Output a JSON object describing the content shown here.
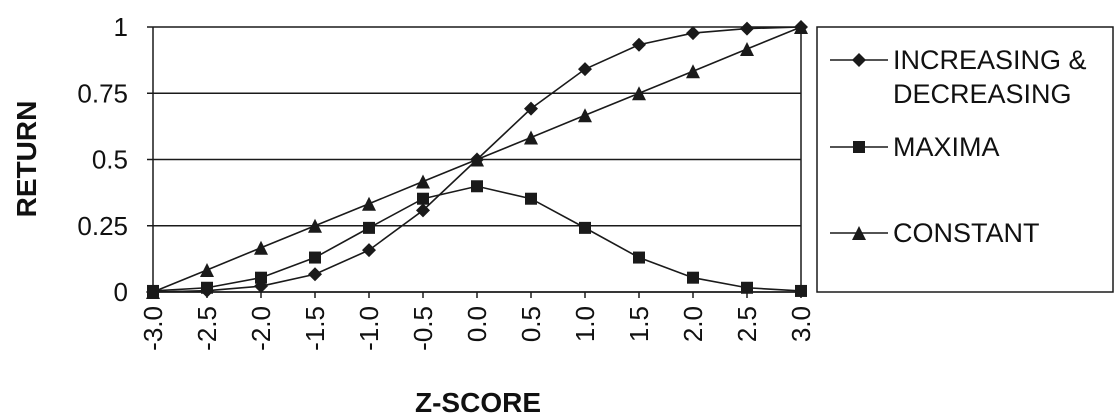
{
  "chart_data": {
    "type": "line",
    "title": "",
    "xlabel": "Z-SCORE",
    "ylabel": "RETURN",
    "x": [
      "-3.0",
      "-2.5",
      "-2.0",
      "-1.5",
      "-1.0",
      "-0.5",
      "0.0",
      "0.5",
      "1.0",
      "1.5",
      "2.0",
      "2.5",
      "3.0"
    ],
    "x_values": [
      -3.0,
      -2.5,
      -2.0,
      -1.5,
      -1.0,
      -0.5,
      0.0,
      0.5,
      1.0,
      1.5,
      2.0,
      2.5,
      3.0
    ],
    "yticks": [
      "0",
      "0.25",
      "0.5",
      "0.75",
      "1"
    ],
    "ytick_values": [
      0,
      0.25,
      0.5,
      0.75,
      1
    ],
    "ylim": [
      0,
      1
    ],
    "xlim": [
      -3.0,
      3.0
    ],
    "grid": "horizontal",
    "legend_position": "right",
    "colors": {
      "line": "#1a1a1a",
      "grid": "#1a1a1a",
      "background": "#ffffff"
    },
    "series": [
      {
        "name": "INCREASING & DECREASING",
        "legend_lines": [
          "INCREASING &",
          "DECREASING"
        ],
        "marker": "diamond",
        "values": [
          0.0,
          0.005,
          0.022,
          0.067,
          0.158,
          0.308,
          0.5,
          0.692,
          0.841,
          0.933,
          0.977,
          0.994,
          1.0
        ]
      },
      {
        "name": "MAXIMA",
        "legend_lines": [
          "MAXIMA"
        ],
        "marker": "square",
        "values": [
          0.004,
          0.016,
          0.054,
          0.13,
          0.242,
          0.352,
          0.399,
          0.352,
          0.242,
          0.13,
          0.054,
          0.016,
          0.004
        ]
      },
      {
        "name": "CONSTANT",
        "legend_lines": [
          "CONSTANT"
        ],
        "marker": "triangle",
        "values": [
          0.0,
          0.083,
          0.167,
          0.25,
          0.333,
          0.417,
          0.5,
          0.583,
          0.667,
          0.75,
          0.833,
          0.917,
          1.0
        ]
      }
    ]
  }
}
